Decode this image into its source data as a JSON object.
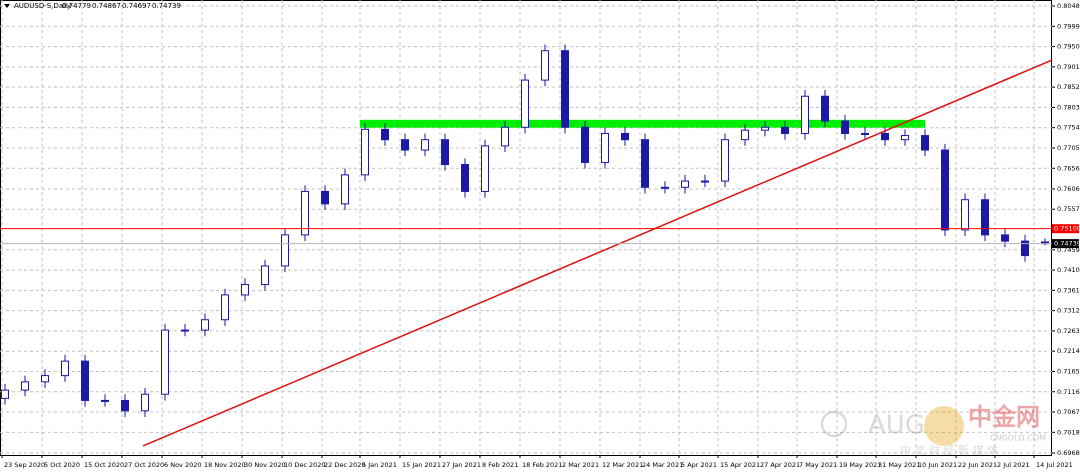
{
  "chart_data": {
    "type": "candlestick",
    "title": "AUDUSD-S,Daily",
    "xlim": [
      -0.25,
      52.35
    ],
    "ylim": [
      0.69632,
      0.80625
    ],
    "grid": true,
    "up_color": "#1a1aa6",
    "down_color": "#1a1aa6",
    "open": [
      0.71,
      0.712,
      0.714,
      0.7155,
      0.719,
      0.7095,
      0.7095,
      0.707,
      0.711,
      0.7265,
      0.7265,
      0.729,
      0.735,
      0.7375,
      0.742,
      0.7495,
      0.76,
      0.757,
      0.764,
      0.775,
      0.7725,
      0.77,
      0.7725,
      0.7665,
      0.76,
      0.771,
      0.7755,
      0.7869,
      0.794,
      0.7755,
      0.767,
      0.774,
      0.7725,
      0.761,
      0.761,
      0.7625,
      0.7625,
      0.7725,
      0.7748,
      0.7755,
      0.774,
      0.783,
      0.777,
      0.774,
      0.774,
      0.7725,
      0.7735,
      0.77,
      0.7507,
      0.758,
      0.7495,
      0.748,
      0.74779
    ],
    "high": [
      0.7135,
      0.7155,
      0.717,
      0.7205,
      0.7205,
      0.711,
      0.711,
      0.7125,
      0.728,
      0.728,
      0.7305,
      0.7365,
      0.739,
      0.7435,
      0.751,
      0.7615,
      0.7615,
      0.7655,
      0.7765,
      0.7765,
      0.774,
      0.774,
      0.774,
      0.768,
      0.7725,
      0.777,
      0.7884,
      0.7955,
      0.7955,
      0.777,
      0.7755,
      0.7755,
      0.774,
      0.7625,
      0.764,
      0.764,
      0.774,
      0.7763,
      0.777,
      0.777,
      0.7845,
      0.7845,
      0.7785,
      0.7755,
      0.7755,
      0.775,
      0.775,
      0.7715,
      0.7595,
      0.7595,
      0.751,
      0.7495,
      0.74867
    ],
    "low": [
      0.7085,
      0.7105,
      0.7125,
      0.714,
      0.708,
      0.708,
      0.7055,
      0.7055,
      0.7095,
      0.725,
      0.725,
      0.7275,
      0.7335,
      0.736,
      0.7405,
      0.748,
      0.7555,
      0.7555,
      0.7625,
      0.771,
      0.7685,
      0.7685,
      0.765,
      0.7585,
      0.7585,
      0.7695,
      0.774,
      0.7854,
      0.774,
      0.7655,
      0.7655,
      0.771,
      0.7595,
      0.7595,
      0.7595,
      0.761,
      0.761,
      0.771,
      0.7733,
      0.7725,
      0.7725,
      0.7755,
      0.7725,
      0.7725,
      0.771,
      0.771,
      0.7685,
      0.7492,
      0.7492,
      0.748,
      0.7465,
      0.743,
      0.74697
    ],
    "close": [
      0.712,
      0.714,
      0.7155,
      0.719,
      0.7095,
      0.7095,
      0.707,
      0.711,
      0.7265,
      0.7265,
      0.729,
      0.735,
      0.7375,
      0.742,
      0.7495,
      0.76,
      0.757,
      0.764,
      0.775,
      0.7725,
      0.77,
      0.7725,
      0.7665,
      0.76,
      0.771,
      0.7755,
      0.7869,
      0.794,
      0.7755,
      0.767,
      0.774,
      0.7725,
      0.761,
      0.761,
      0.7625,
      0.7625,
      0.7725,
      0.7748,
      0.7755,
      0.774,
      0.783,
      0.777,
      0.774,
      0.774,
      0.7725,
      0.7735,
      0.77,
      0.7507,
      0.758,
      0.7495,
      0.748,
      0.7445,
      0.74739
    ],
    "yticks": [
      {
        "value": 0.8048,
        "label": "0.80480"
      },
      {
        "value": 0.7999,
        "label": "0.79990"
      },
      {
        "value": 0.795,
        "label": "0.79500"
      },
      {
        "value": 0.7901,
        "label": "0.79010"
      },
      {
        "value": 0.7852,
        "label": "0.78520"
      },
      {
        "value": 0.7803,
        "label": "0.78030"
      },
      {
        "value": 0.7754,
        "label": "0.77540"
      },
      {
        "value": 0.7705,
        "label": "0.77050"
      },
      {
        "value": 0.7656,
        "label": "0.76560"
      },
      {
        "value": 0.7606,
        "label": "0.76060"
      },
      {
        "value": 0.7557,
        "label": "0.75570"
      },
      {
        "value": 0.7459,
        "label": "0.74590"
      },
      {
        "value": 0.741,
        "label": "0.74100"
      },
      {
        "value": 0.7361,
        "label": "0.73610"
      },
      {
        "value": 0.7312,
        "label": "0.73120"
      },
      {
        "value": 0.7263,
        "label": "0.72630"
      },
      {
        "value": 0.7214,
        "label": "0.72140"
      },
      {
        "value": 0.7165,
        "label": "0.71650"
      },
      {
        "value": 0.7116,
        "label": "0.71160"
      },
      {
        "value": 0.7067,
        "label": "0.70670"
      },
      {
        "value": 0.7018,
        "label": "0.70180"
      },
      {
        "value": 0.6968,
        "label": "0.69680"
      }
    ],
    "xticks": [
      {
        "value": -0.15,
        "label": "23 Sep 2020"
      },
      {
        "value": 1.85,
        "label": "5 Oct 2020"
      },
      {
        "value": 3.85,
        "label": "15 Oct 2020"
      },
      {
        "value": 5.85,
        "label": "27 Oct 2020"
      },
      {
        "value": 7.85,
        "label": "6 Nov 2020"
      },
      {
        "value": 9.85,
        "label": "18 Nov 2020"
      },
      {
        "value": 11.85,
        "label": "30 Nov 2020"
      },
      {
        "value": 13.85,
        "label": "10 Dec 2020"
      },
      {
        "value": 15.85,
        "label": "22 Dec 2020"
      },
      {
        "value": 17.75,
        "label": "5 Jan 2021"
      },
      {
        "value": 19.75,
        "label": "15 Jan 2021"
      },
      {
        "value": 21.75,
        "label": "27 Jan 2021"
      },
      {
        "value": 23.75,
        "label": "8 Feb 2021"
      },
      {
        "value": 25.75,
        "label": "18 Feb 2021"
      },
      {
        "value": 27.75,
        "label": "2 Mar 2021"
      },
      {
        "value": 29.75,
        "label": "12 Mar 2021"
      },
      {
        "value": 31.75,
        "label": "24 Mar 2021"
      },
      {
        "value": 33.7,
        "label": "5 Apr 2021"
      },
      {
        "value": 35.65,
        "label": "15 Apr 2021"
      },
      {
        "value": 37.65,
        "label": "27 Apr 2021"
      },
      {
        "value": 39.6,
        "label": "7 May 2021"
      },
      {
        "value": 41.6,
        "label": "19 May 2021"
      },
      {
        "value": 43.55,
        "label": "31 May 2021"
      },
      {
        "value": 45.55,
        "label": "10 Jun 2021"
      },
      {
        "value": 47.55,
        "label": "22 Jun 2021"
      },
      {
        "value": 49.5,
        "label": "2 Jul 2021"
      },
      {
        "value": 51.45,
        "label": "14 Jul 2021"
      }
    ],
    "hlines": [
      {
        "value": 0.751,
        "label": "0.75100",
        "color": "#ff0000"
      },
      {
        "value": 0.74739,
        "label": "0.74739",
        "color": "#b4b4b4"
      }
    ],
    "trendline": {
      "x": [
        6.9,
        52.35
      ],
      "y": [
        0.6985,
        0.79175
      ],
      "color": "#e01010"
    },
    "zone": {
      "x": [
        17.75,
        46.0
      ],
      "y": [
        0.7754,
        0.7773
      ],
      "color": "#00ee00"
    }
  },
  "watermark": {
    "brand": "AUG",
    "logo": "中金网",
    "site": "CNGOLD.COM",
    "slogan": "中 文 财 经 新 媒 体"
  }
}
